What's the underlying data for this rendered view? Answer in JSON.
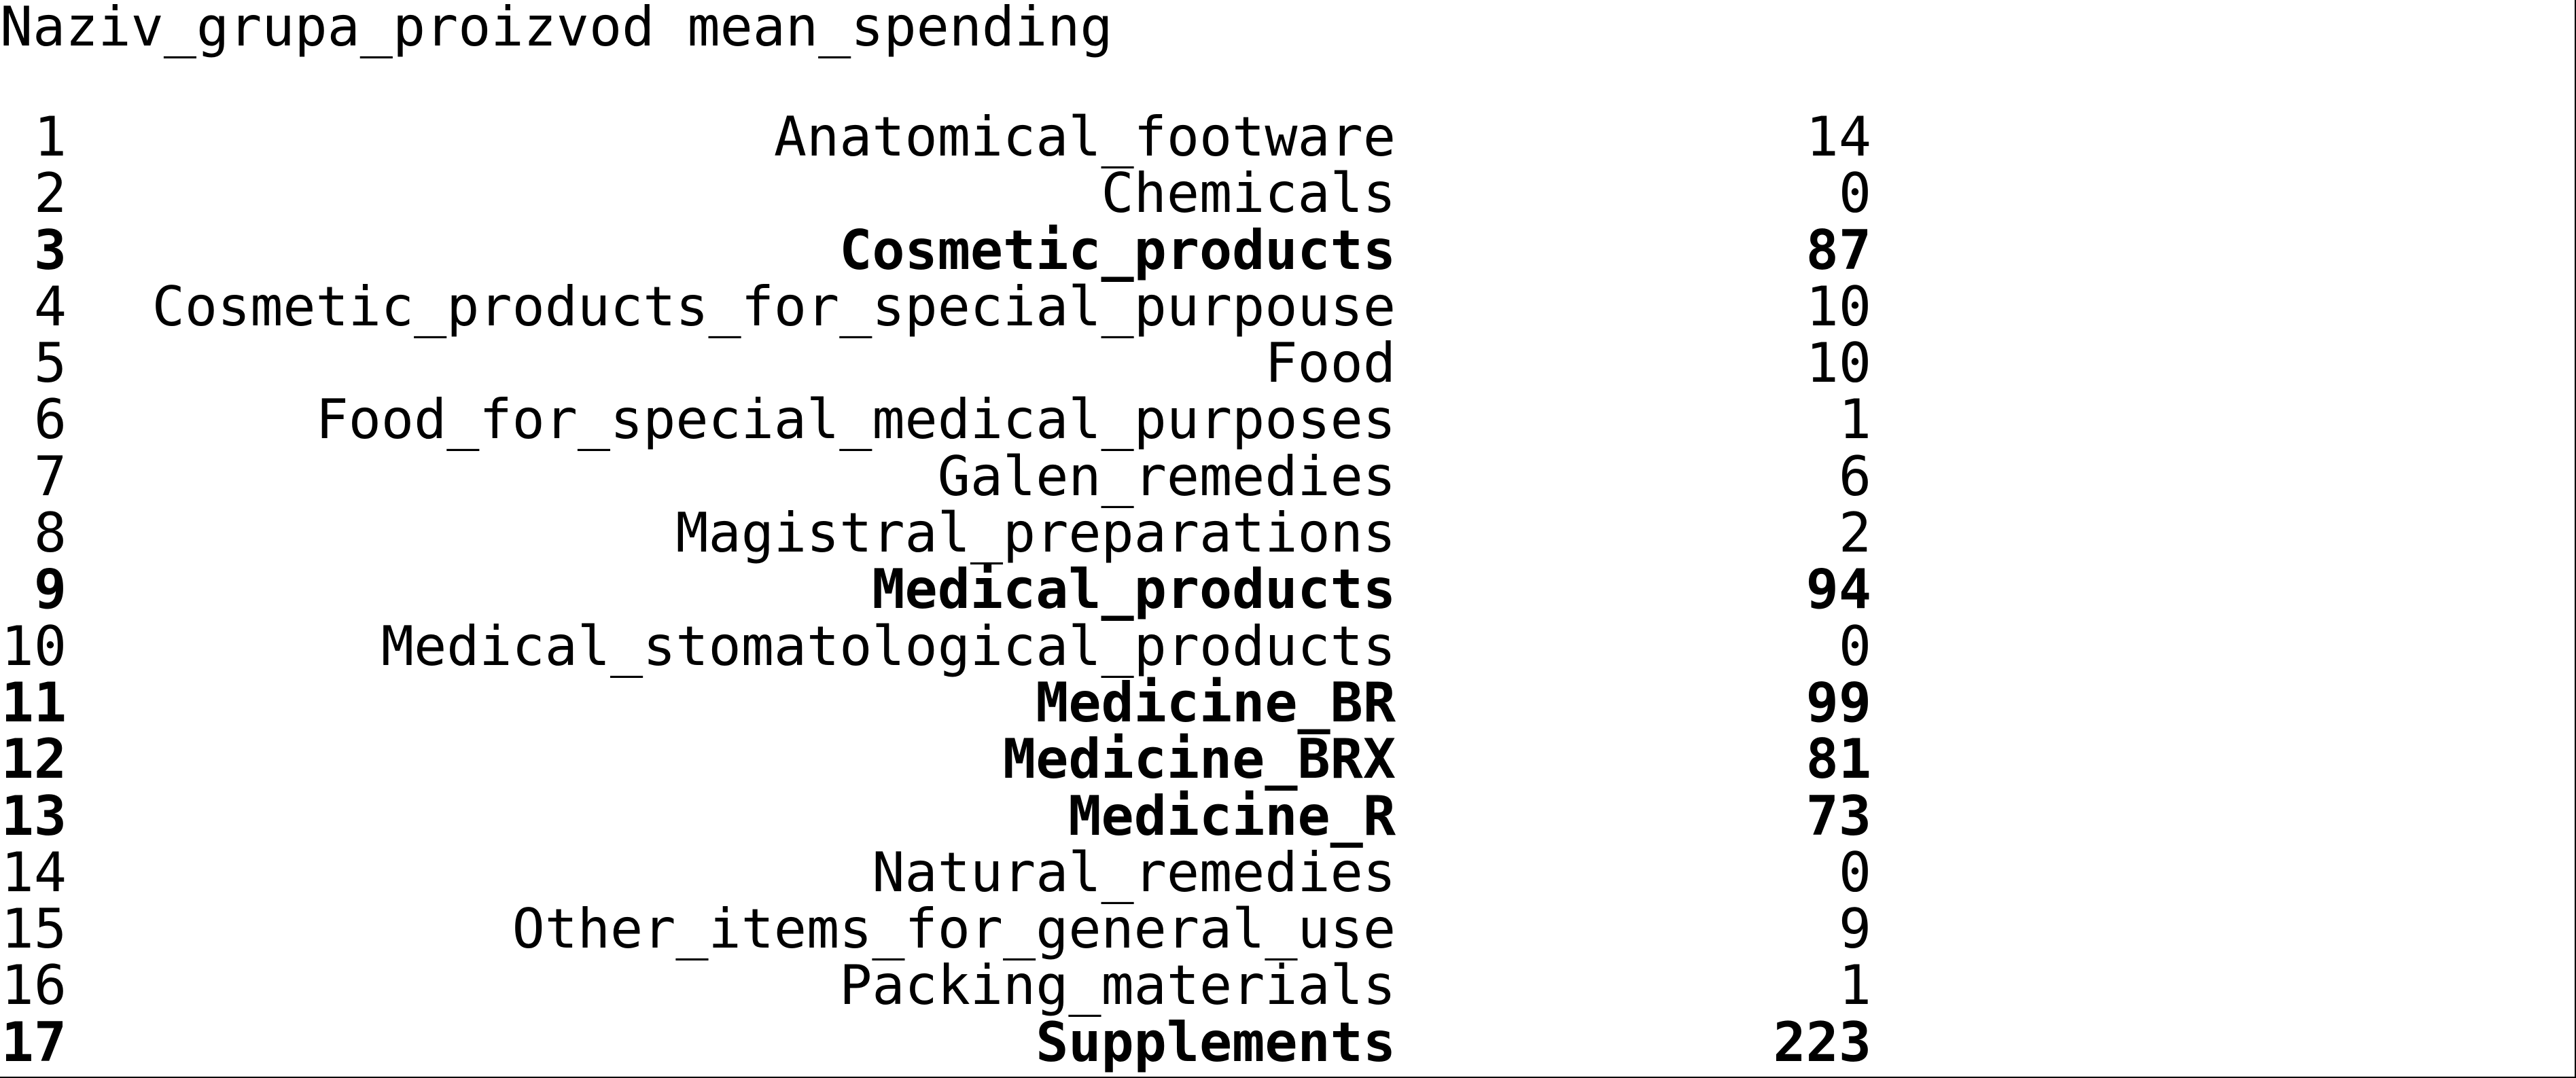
{
  "header": {
    "col_name": "Naziv_grupa_proizvod",
    "col_value": "mean_spending"
  },
  "rows": [
    {
      "idx": "1",
      "name": "Anatomical_footware",
      "value": "14",
      "bold": false
    },
    {
      "idx": "2",
      "name": "Chemicals",
      "value": "0",
      "bold": false
    },
    {
      "idx": "3",
      "name": "Cosmetic_products",
      "value": "87",
      "bold": true
    },
    {
      "idx": "4",
      "name": "Cosmetic_products_for_special_purpouse",
      "value": "10",
      "bold": false
    },
    {
      "idx": "5",
      "name": "Food",
      "value": "10",
      "bold": false
    },
    {
      "idx": "6",
      "name": "Food_for_special_medical_purposes",
      "value": "1",
      "bold": false
    },
    {
      "idx": "7",
      "name": "Galen_remedies",
      "value": "6",
      "bold": false
    },
    {
      "idx": "8",
      "name": "Magistral_preparations",
      "value": "2",
      "bold": false
    },
    {
      "idx": "9",
      "name": "Medical_products",
      "value": "94",
      "bold": true
    },
    {
      "idx": "10",
      "name": "Medical_stomatological_products",
      "value": "0",
      "bold": false
    },
    {
      "idx": "11",
      "name": "Medicine_BR",
      "value": "99",
      "bold": true
    },
    {
      "idx": "12",
      "name": "Medicine_BRX",
      "value": "81",
      "bold": true
    },
    {
      "idx": "13",
      "name": "Medicine_R",
      "value": "73",
      "bold": true
    },
    {
      "idx": "14",
      "name": "Natural_remedies",
      "value": "0",
      "bold": false
    },
    {
      "idx": "15",
      "name": "Other_items_for_general_use",
      "value": "9",
      "bold": false
    },
    {
      "idx": "16",
      "name": "Packing_materials",
      "value": "1",
      "bold": false
    },
    {
      "idx": "17",
      "name": "Supplements",
      "value": "223",
      "bold": true
    }
  ]
}
